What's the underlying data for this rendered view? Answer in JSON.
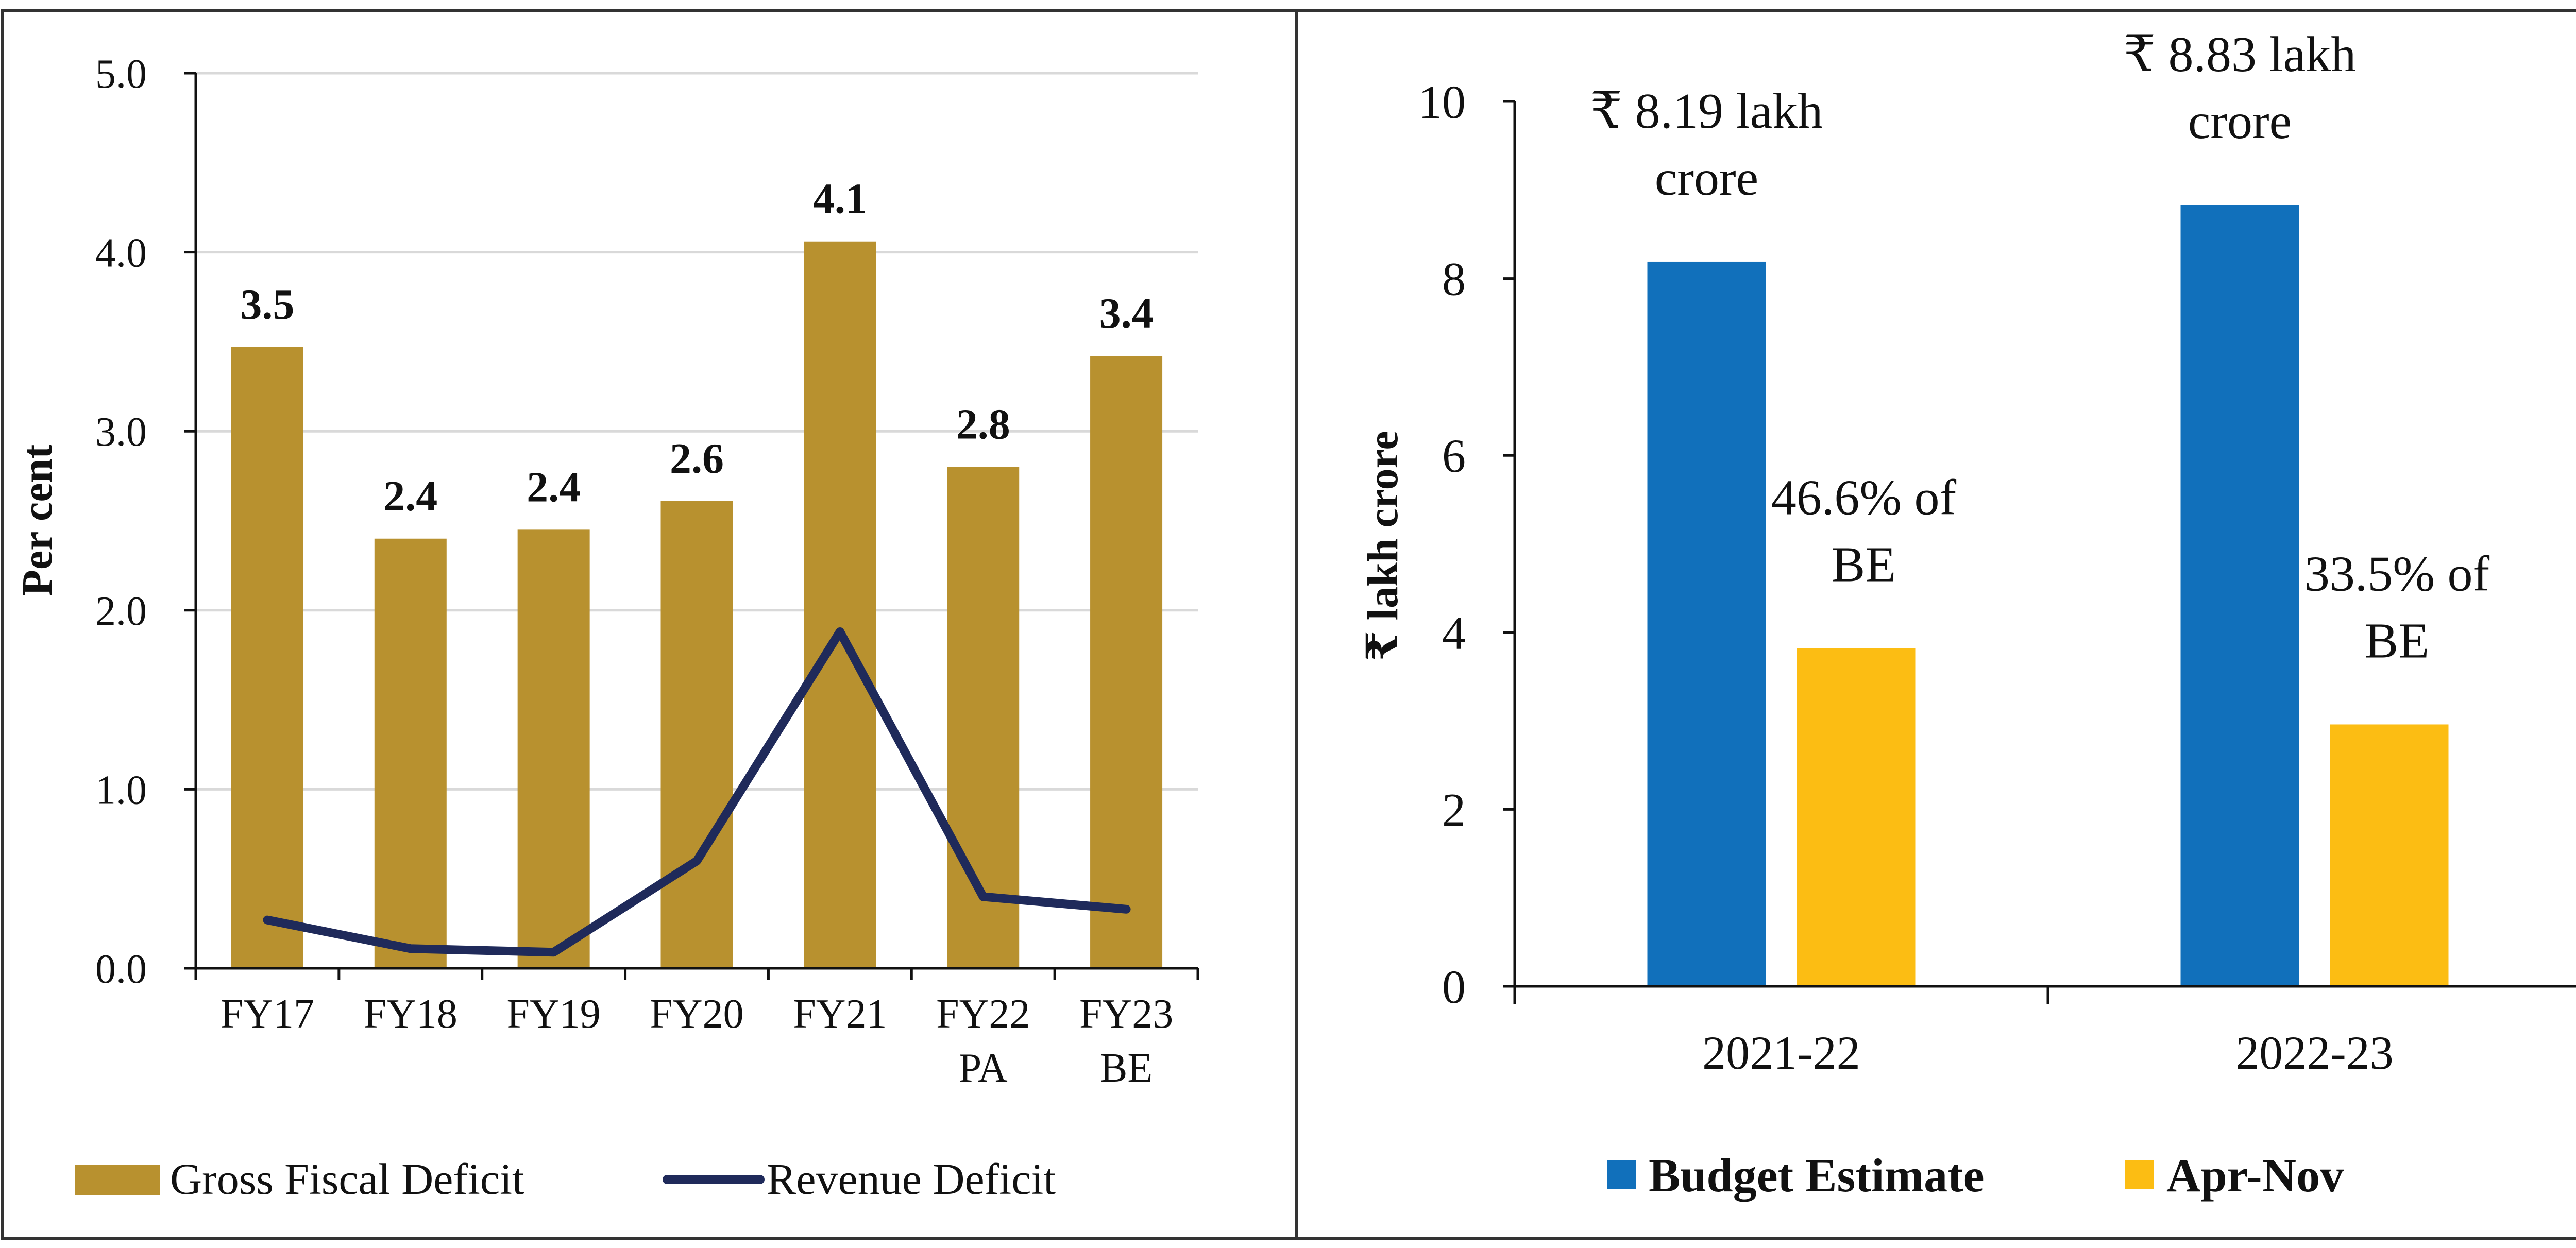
{
  "colors": {
    "gross_fiscal_deficit": "#B8912F",
    "revenue_deficit": "#1F2A5A",
    "budget_estimate": "#1170BB",
    "apr_nov": "#FCBD13",
    "grid": "#D9D9D9",
    "axis": "#111111",
    "border": "#333333"
  },
  "chart_data": [
    {
      "type": "bar",
      "categories": [
        [
          "FY17"
        ],
        [
          "FY18"
        ],
        [
          "FY19"
        ],
        [
          "FY20"
        ],
        [
          "FY21"
        ],
        [
          "FY22",
          "PA"
        ],
        [
          "FY23",
          "BE"
        ]
      ],
      "ylabel": "Per cent",
      "ylim": [
        0,
        5
      ],
      "yticks": [
        "0.0",
        "1.0",
        "2.0",
        "3.0",
        "4.0",
        "5.0"
      ],
      "grid": true,
      "legend_position": "bottom",
      "series": [
        {
          "name": "Gross Fiscal Deficit",
          "kind": "bar",
          "values": [
            3.47,
            2.4,
            2.45,
            2.61,
            4.06,
            2.8,
            3.42
          ],
          "data_labels": [
            "3.5",
            "2.4",
            "2.4",
            "2.6",
            "4.1",
            "2.8",
            "3.4"
          ]
        },
        {
          "name": "Revenue Deficit",
          "kind": "line",
          "values": [
            0.27,
            0.11,
            0.09,
            0.6,
            1.88,
            0.4,
            0.33
          ]
        }
      ]
    },
    {
      "type": "bar",
      "categories": [
        "2021-22",
        "2022-23"
      ],
      "ylabel": "₹ lakh crore",
      "ylim": [
        0,
        10
      ],
      "yticks": [
        "0",
        "2",
        "4",
        "6",
        "8",
        "10"
      ],
      "grid": false,
      "legend_position": "bottom",
      "series": [
        {
          "name": "Budget Estimate",
          "values": [
            8.19,
            8.83
          ],
          "annotations": [
            [
              "₹ 8.19 lakh",
              "crore"
            ],
            [
              "₹ 8.83 lakh",
              "crore"
            ]
          ]
        },
        {
          "name": "Apr-Nov",
          "values": [
            3.82,
            2.96
          ],
          "annotations": [
            [
              "46.6% of",
              "BE"
            ],
            [
              "33.5% of",
              "BE"
            ]
          ]
        }
      ]
    }
  ]
}
